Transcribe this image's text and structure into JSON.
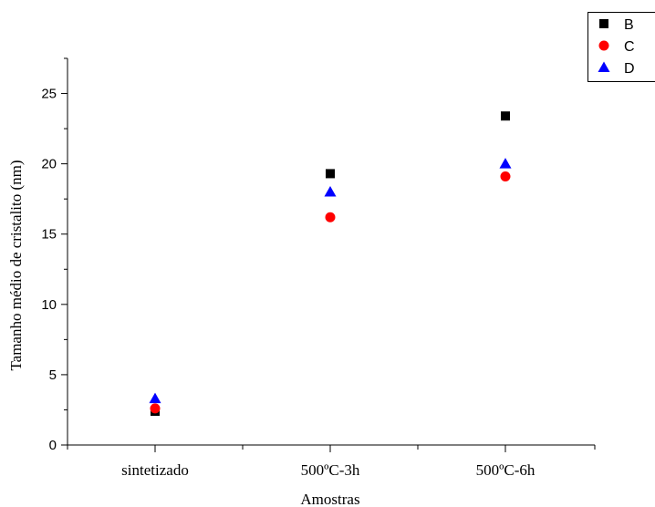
{
  "chart_data": {
    "type": "scatter",
    "categories": [
      "sintetizado",
      "500ºC-3h",
      "500ºC-6h"
    ],
    "series": [
      {
        "name": "B",
        "values": [
          2.4,
          19.3,
          23.4
        ],
        "color": "#000000",
        "marker": "square"
      },
      {
        "name": "C",
        "values": [
          2.6,
          16.2,
          19.1
        ],
        "color": "#ff0000",
        "marker": "circle"
      },
      {
        "name": "D",
        "values": [
          3.3,
          18.0,
          20.0
        ],
        "color": "#0000ff",
        "marker": "triangle"
      }
    ],
    "xlabel": "Amostras",
    "ylabel": "Tamanho médio de cristalito (nm)",
    "ylim": [
      0,
      27.5
    ],
    "yticks": [
      0,
      5,
      10,
      15,
      20,
      25
    ],
    "grid": false,
    "legend_position": "top-right"
  }
}
